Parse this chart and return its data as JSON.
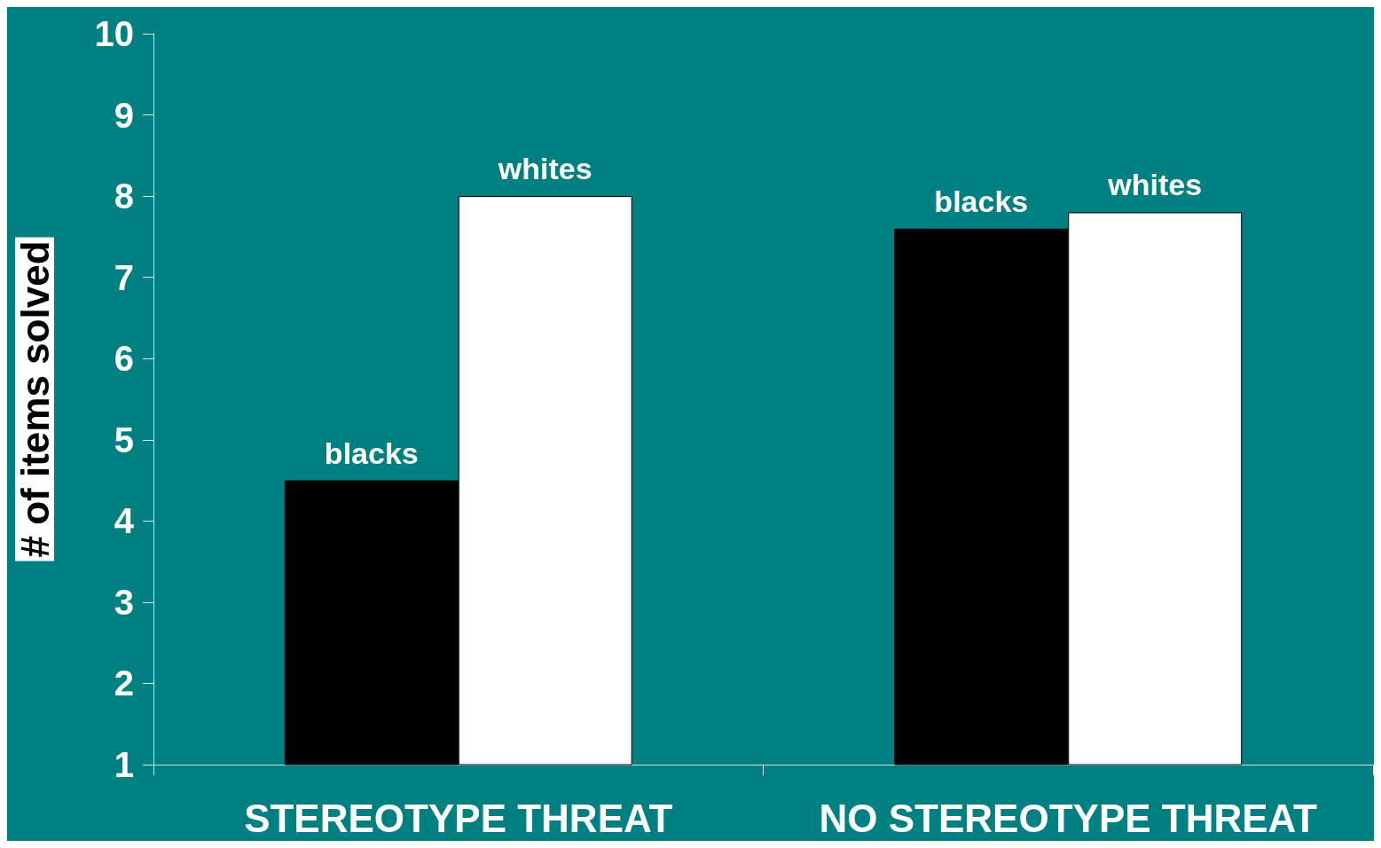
{
  "chart_data": {
    "type": "bar",
    "ylabel": "# of items solved",
    "categories": [
      "STEREOTYPE THREAT",
      "NO STEREOTYPE THREAT"
    ],
    "series": [
      {
        "name": "blacks",
        "color": "#000000",
        "values": [
          4.5,
          7.6
        ]
      },
      {
        "name": "whites",
        "color": "#ffffff",
        "values": [
          8.0,
          7.8
        ]
      }
    ],
    "ylim": [
      1,
      10
    ],
    "yticks": [
      1,
      2,
      3,
      4,
      5,
      6,
      7,
      8,
      9,
      10
    ],
    "grid": false,
    "legend": false
  }
}
